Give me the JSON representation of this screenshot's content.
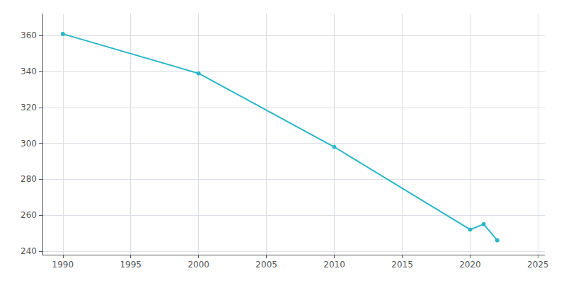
{
  "chart_data": {
    "type": "line",
    "x": [
      1990,
      2000,
      2010,
      2020,
      2021,
      2022
    ],
    "values": [
      361,
      339,
      298,
      252,
      255,
      246
    ],
    "color": "#29b6c8",
    "marker": "circle",
    "xlim": [
      1988.5,
      2025.5
    ],
    "ylim": [
      238,
      372
    ],
    "xticks": [
      1990,
      1995,
      2000,
      2005,
      2010,
      2015,
      2020,
      2025
    ],
    "yticks": [
      240,
      260,
      280,
      300,
      320,
      340,
      360
    ],
    "grid": true
  }
}
